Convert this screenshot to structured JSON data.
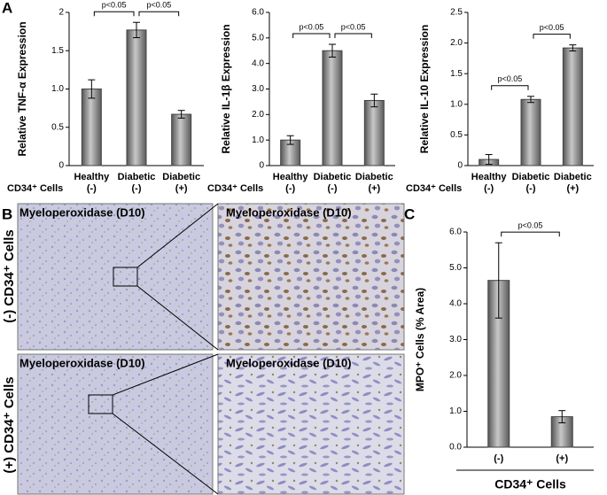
{
  "panel_labels": [
    "A",
    "B",
    "C"
  ],
  "micrographs": {
    "row_labels": [
      "(-) CD34⁺ Cells",
      "(+) CD34⁺ Cells"
    ],
    "stain_labels": [
      "Myeloperoxidase (D10)",
      "Myeloperoxidase (D10)",
      "Myeloperoxidase (D10)",
      "Myeloperoxidase (D10)"
    ]
  },
  "chart_data": [
    {
      "type": "bar",
      "ylabel": "Relative TNF-α Expression",
      "row_label": "CD34⁺ Cells",
      "categories": [
        "Healthy",
        "Diabetic",
        "Diabetic"
      ],
      "sub_categories": [
        "(-)",
        "(-)",
        "(+)"
      ],
      "values": [
        1.0,
        1.77,
        0.67
      ],
      "errors": [
        0.12,
        0.1,
        0.05
      ],
      "color": "#707070",
      "ylim": [
        0,
        2
      ],
      "yticks": [
        0,
        0.5,
        {
          "value": 1,
          "label": "1.0"
        },
        1.5,
        2
      ],
      "annotations": [
        "p<0.05",
        "p<0.05"
      ]
    },
    {
      "type": "bar",
      "ylabel": "Relative IL-1β Expression",
      "row_label": "CD34⁺ Cells",
      "categories": [
        "Healthy",
        "Diabetic",
        "Diabetic"
      ],
      "sub_categories": [
        "(-)",
        "(-)",
        "(+)"
      ],
      "values": [
        1.0,
        4.5,
        2.55
      ],
      "errors": [
        0.17,
        0.25,
        0.25
      ],
      "color": "#707070",
      "ylim": [
        0,
        6
      ],
      "yticks": [
        0,
        {
          "value": 1,
          "label": "1.0"
        },
        {
          "value": 2,
          "label": "2.0"
        },
        {
          "value": 3,
          "label": "3.0"
        },
        {
          "value": 4,
          "label": "4.0"
        },
        {
          "value": 5,
          "label": "5.0"
        },
        {
          "value": 6,
          "label": "6.0"
        }
      ],
      "annotations": [
        "p<0.05",
        "p<0.05"
      ]
    },
    {
      "type": "bar",
      "ylabel": "Relative IL-10 Expression",
      "row_label": "CD34⁺ Cells",
      "categories": [
        "Healthy",
        "Diabetic",
        "Diabetic"
      ],
      "sub_categories": [
        "(-)",
        "(-)",
        "(+)"
      ],
      "values": [
        0.1,
        1.08,
        1.92
      ],
      "errors": [
        0.08,
        0.05,
        0.05
      ],
      "color": "#707070",
      "ylim": [
        0,
        2.5
      ],
      "yticks": [
        0,
        0.5,
        {
          "value": 1,
          "label": "1.0"
        },
        1.5,
        {
          "value": 2,
          "label": "2.0"
        },
        2.5
      ],
      "annotations": [
        "p<0.05",
        "p<0.05"
      ]
    },
    {
      "type": "bar",
      "ylabel": "MPO⁺ Cells (% Area)",
      "xlabel": "CD34⁺ Cells",
      "categories": [
        "(-)",
        "(+)"
      ],
      "values": [
        4.65,
        0.85
      ],
      "errors": [
        1.05,
        0.17
      ],
      "color": "#707070",
      "ylim": [
        0,
        6
      ],
      "yticks": [
        {
          "value": 0,
          "label": "0.0"
        },
        {
          "value": 1,
          "label": "1.0"
        },
        {
          "value": 2,
          "label": "2.0"
        },
        {
          "value": 3,
          "label": "3.0"
        },
        {
          "value": 4,
          "label": "4.0"
        },
        {
          "value": 5,
          "label": "5.0"
        },
        {
          "value": 6,
          "label": "6.0"
        }
      ],
      "annotations": [
        "p<0.05"
      ]
    }
  ]
}
